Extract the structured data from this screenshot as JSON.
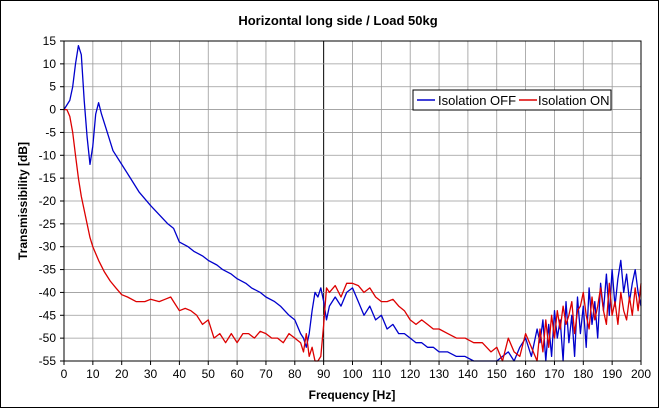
{
  "chart_data": {
    "type": "line",
    "title": "Horizontal long side / Load 50kg",
    "xlabel": "Frequency [Hz]",
    "ylabel": "Transmissibility [dB]",
    "xlim": [
      0,
      200
    ],
    "ylim": [
      -55,
      15
    ],
    "xticks": [
      0,
      10,
      20,
      30,
      40,
      50,
      60,
      70,
      80,
      90,
      100,
      110,
      120,
      130,
      140,
      150,
      160,
      170,
      180,
      190,
      200
    ],
    "yticks": [
      15,
      10,
      5,
      0,
      -5,
      -10,
      -15,
      -20,
      -25,
      -30,
      -35,
      -40,
      -45,
      -50,
      -55
    ],
    "grid": true,
    "legend_position": "upper-right",
    "series": [
      {
        "name": "Isolation OFF",
        "color": "#0000cc",
        "x": [
          0,
          2,
          3,
          4,
          5,
          6,
          7,
          8,
          9,
          10,
          11,
          12,
          13,
          15,
          17,
          20,
          23,
          26,
          30,
          33,
          36,
          38,
          40,
          43,
          45,
          48,
          50,
          53,
          55,
          58,
          60,
          63,
          65,
          68,
          70,
          73,
          75,
          78,
          80,
          82,
          83,
          84,
          85,
          86,
          87,
          88,
          89,
          90,
          91,
          92,
          94,
          96,
          98,
          100,
          102,
          104,
          106,
          108,
          110,
          112,
          114,
          116,
          118,
          120,
          122,
          124,
          126,
          128,
          130,
          133,
          136,
          139,
          142,
          145,
          148,
          150,
          152,
          154,
          156,
          158,
          160,
          162,
          164,
          165,
          166,
          167,
          168,
          169,
          170,
          171,
          172,
          173,
          174,
          175,
          176,
          177,
          178,
          179,
          180,
          181,
          182,
          183,
          184,
          185,
          186,
          187,
          188,
          189,
          190,
          191,
          192,
          193,
          194,
          195,
          196,
          197,
          198,
          199,
          200
        ],
        "y": [
          0,
          2,
          5,
          10,
          14,
          12,
          2,
          -6,
          -12,
          -8,
          -1,
          1.5,
          -1,
          -5,
          -9,
          -12,
          -15,
          -18,
          -21,
          -23,
          -25,
          -26,
          -29,
          -30,
          -31,
          -32,
          -33,
          -34,
          -35,
          -36,
          -37,
          -38,
          -39,
          -40,
          -41,
          -42,
          -43,
          -45,
          -46,
          -49,
          -50,
          -52,
          -49,
          -44,
          -40,
          -41,
          -39,
          -42,
          -46,
          -43,
          -41,
          -43,
          -40,
          -39,
          -42,
          -45,
          -43,
          -46,
          -45,
          -48,
          -47,
          -49,
          -49,
          -50,
          -51,
          -51,
          -52,
          -52,
          -53,
          -53,
          -54,
          -54,
          -55,
          -55,
          -55,
          -55,
          -54,
          -53,
          -55,
          -52,
          -50,
          -54,
          -48,
          -51,
          -46,
          -55,
          -47,
          -54,
          -44,
          -50,
          -46,
          -55,
          -42,
          -51,
          -45,
          -54,
          -41,
          -49,
          -43,
          -52,
          -39,
          -47,
          -42,
          -50,
          -38,
          -44,
          -36,
          -45,
          -35,
          -43,
          -37,
          -33,
          -40,
          -36,
          -42,
          -38,
          -35,
          -40,
          -43
        ]
      },
      {
        "name": "Isolation ON",
        "color": "#dd0000",
        "x": [
          0,
          1,
          2,
          3,
          4,
          5,
          6,
          7,
          8,
          9,
          10,
          12,
          14,
          16,
          18,
          20,
          22,
          25,
          28,
          30,
          33,
          35,
          37,
          38,
          40,
          42,
          44,
          46,
          48,
          50,
          52,
          54,
          56,
          58,
          60,
          62,
          64,
          66,
          68,
          70,
          72,
          74,
          76,
          78,
          80,
          82,
          83,
          84,
          85,
          86,
          87,
          88,
          89,
          90,
          91,
          92,
          94,
          96,
          98,
          100,
          102,
          104,
          106,
          108,
          110,
          112,
          114,
          116,
          118,
          120,
          122,
          124,
          126,
          128,
          130,
          133,
          136,
          139,
          142,
          145,
          148,
          150,
          152,
          154,
          156,
          158,
          160,
          162,
          164,
          165,
          166,
          167,
          168,
          169,
          170,
          171,
          172,
          173,
          174,
          175,
          176,
          177,
          178,
          179,
          180,
          181,
          182,
          183,
          184,
          185,
          186,
          187,
          188,
          189,
          190,
          191,
          192,
          193,
          194,
          195,
          196,
          197,
          198,
          199,
          200
        ],
        "y": [
          0,
          0,
          -1.5,
          -5,
          -10,
          -15,
          -19,
          -22,
          -25,
          -28,
          -30,
          -33,
          -35.5,
          -37.5,
          -39,
          -40.5,
          -41,
          -42,
          -42,
          -41.5,
          -42,
          -41.5,
          -41,
          -42,
          -44,
          -43.5,
          -44,
          -45,
          -47,
          -46,
          -50,
          -49,
          -51,
          -49,
          -51,
          -49,
          -49,
          -50,
          -48.5,
          -49,
          -50,
          -50,
          -51,
          -49,
          -50,
          -51,
          -53,
          -49,
          -54,
          -52,
          -56,
          -55,
          -54,
          -47,
          -39,
          -40,
          -38.5,
          -41,
          -38,
          -38,
          -38.5,
          -40,
          -39,
          -41,
          -42,
          -42,
          -41.5,
          -43,
          -44,
          -46,
          -47,
          -46,
          -47,
          -48,
          -48,
          -49,
          -50,
          -50,
          -51,
          -51,
          -53,
          -52,
          -55,
          -50,
          -53,
          -54,
          -49,
          -52,
          -55,
          -48,
          -53,
          -46,
          -52,
          -45,
          -50,
          -44,
          -48,
          -43,
          -47,
          -45,
          -42,
          -49,
          -44,
          -43,
          -40,
          -45,
          -48,
          -41,
          -46,
          -43,
          -39,
          -44,
          -47,
          -38,
          -45,
          -42,
          -47,
          -40,
          -44,
          -46,
          -41,
          -45,
          -39,
          -44,
          -38
        ]
      }
    ]
  }
}
